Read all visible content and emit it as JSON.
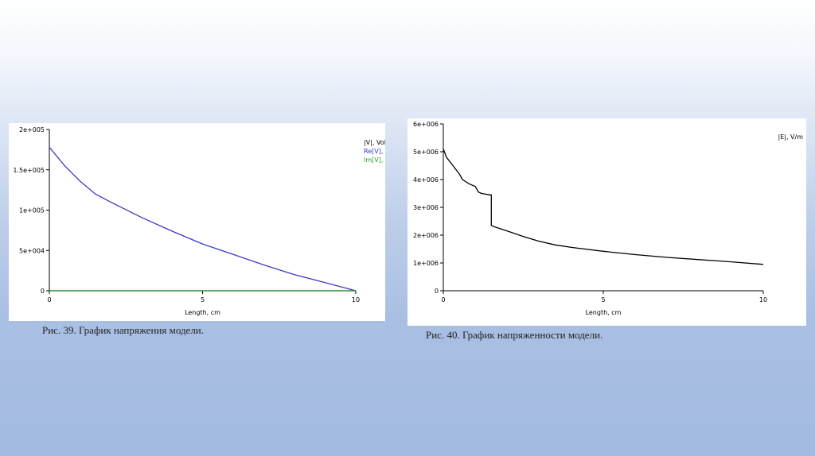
{
  "chart_data": [
    {
      "type": "line",
      "xlabel": "Length, cm",
      "ylabel": "",
      "xlim": [
        0,
        10
      ],
      "ylim": [
        0,
        200000
      ],
      "x_ticks": [
        "0",
        "5",
        "10"
      ],
      "y_ticks": [
        "0",
        "5e+004",
        "1e+005",
        "1.5e+005",
        "2e+005"
      ],
      "legend_position": "top-right",
      "series": [
        {
          "name": "|V|, Volts",
          "color": "#000000",
          "x": [
            0,
            10
          ],
          "y": [
            0,
            0
          ]
        },
        {
          "name": "Re[V], Volts",
          "color": "#3a3ac8",
          "x": [
            0,
            0.5,
            1.0,
            1.5,
            2,
            3,
            4,
            5,
            6,
            7,
            8,
            9,
            10
          ],
          "y": [
            178000,
            155000,
            136000,
            120000,
            110000,
            91000,
            74000,
            58000,
            45000,
            32000,
            20000,
            10000,
            0
          ]
        },
        {
          "name": "Im[V], Volts",
          "color": "#2aa02a",
          "x": [
            0,
            10
          ],
          "y": [
            0,
            0
          ]
        }
      ],
      "caption": "Рис. 39. График напряжения модели."
    },
    {
      "type": "line",
      "xlabel": "Length, cm",
      "ylabel": "",
      "xlim": [
        0,
        10
      ],
      "ylim": [
        0,
        6000000
      ],
      "x_ticks": [
        "0",
        "5",
        "10"
      ],
      "y_ticks": [
        "0",
        "1e+006",
        "2e+006",
        "3e+006",
        "4e+006",
        "5e+006",
        "6e+006"
      ],
      "legend_position": "top-right",
      "series": [
        {
          "name": "|E|, V/m",
          "color": "#000000",
          "x": [
            0,
            0.1,
            0.3,
            0.5,
            0.6,
            0.8,
            1.0,
            1.1,
            1.2,
            1.45,
            1.5,
            1.5,
            1.6,
            2.0,
            2.5,
            3.0,
            3.5,
            4.0,
            5.0,
            6.0,
            7.0,
            8.0,
            9.0,
            10.0
          ],
          "y": [
            5100000,
            4800000,
            4500000,
            4200000,
            4000000,
            3850000,
            3750000,
            3550000,
            3500000,
            3450000,
            3450000,
            2350000,
            2300000,
            2150000,
            1950000,
            1780000,
            1650000,
            1560000,
            1420000,
            1300000,
            1200000,
            1120000,
            1040000,
            950000
          ]
        }
      ],
      "caption": "Рис. 40. График напряженности модели."
    }
  ]
}
